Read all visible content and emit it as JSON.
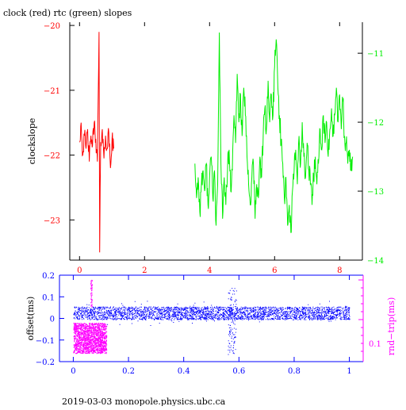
{
  "title": "clock (red) rtc (green) slopes",
  "footer": "2019-03-03  monopole.physics.ubc.ca",
  "colors": {
    "clock": "#ff0000",
    "rtc": "#00ee00",
    "offset": "#0000ff",
    "rndtrip": "#ff00ff",
    "frame": "#000000"
  },
  "chart_data": [
    {
      "type": "line",
      "title": "clock (red) rtc (green) slopes",
      "ylabel": "clockslope",
      "xlim": [
        -0.3,
        8.7
      ],
      "ylim": [
        -23.62,
        -19.95
      ],
      "y2lim": [
        -14.0,
        -10.55
      ],
      "x_ticks": [
        0,
        2,
        4,
        6,
        8
      ],
      "x_tick_labels": [
        "0",
        "2",
        "4",
        "6",
        "8"
      ],
      "y_ticks": [
        -20,
        -21,
        -22,
        -23
      ],
      "y_tick_labels": [
        "−20",
        "−21",
        "−22",
        "−23"
      ],
      "y2_ticks": [
        -11,
        -12,
        -13,
        -14
      ],
      "y2_tick_labels": [
        "−11",
        "−12",
        "−13",
        "−14"
      ],
      "series": [
        {
          "axis": "left",
          "color": "#ff0000",
          "x": [
            0.0,
            0.05,
            0.1,
            0.15,
            0.2,
            0.25,
            0.3,
            0.35,
            0.4,
            0.45,
            0.5,
            0.55,
            0.6,
            0.62,
            0.65,
            0.7,
            0.75,
            0.8,
            0.85,
            0.9,
            0.95,
            1.0,
            1.05
          ],
          "values": [
            -21.8,
            -21.5,
            -22.0,
            -21.7,
            -21.9,
            -21.6,
            -22.1,
            -21.7,
            -21.85,
            -21.5,
            -21.75,
            -22.1,
            -20.1,
            -23.5,
            -21.8,
            -21.6,
            -22.05,
            -21.7,
            -21.9,
            -21.65,
            -22.2,
            -21.75,
            -21.9
          ]
        },
        {
          "axis": "right",
          "color": "#00ee00",
          "x": [
            3.55,
            3.6,
            3.65,
            3.7,
            3.75,
            3.8,
            3.85,
            3.9,
            3.95,
            4.0,
            4.05,
            4.1,
            4.15,
            4.2,
            4.25,
            4.3,
            4.35,
            4.4,
            4.45,
            4.5,
            4.55,
            4.6,
            4.65,
            4.7,
            4.75,
            4.8,
            4.85,
            4.9,
            4.95,
            5.0,
            5.05,
            5.1,
            5.15,
            5.2,
            5.25,
            5.3,
            5.35,
            5.4,
            5.45,
            5.5,
            5.55,
            5.6,
            5.65,
            5.7,
            5.75,
            5.8,
            5.85,
            5.9,
            5.95,
            6.0,
            6.05,
            6.1,
            6.15,
            6.2,
            6.25,
            6.3,
            6.35,
            6.4,
            6.45,
            6.5,
            6.55,
            6.6,
            6.65,
            6.7,
            6.75,
            6.8,
            6.85,
            6.9,
            6.95,
            7.0,
            7.05,
            7.1,
            7.15,
            7.2,
            7.25,
            7.3,
            7.35,
            7.4,
            7.45,
            7.5,
            7.55,
            7.6,
            7.65,
            7.7,
            7.75,
            7.8,
            7.85,
            7.9,
            7.95,
            8.0,
            8.05,
            8.1,
            8.15,
            8.2,
            8.25,
            8.3,
            8.35,
            8.4
          ],
          "values": [
            -12.6,
            -13.1,
            -12.8,
            -13.3,
            -12.9,
            -12.7,
            -13.0,
            -12.6,
            -13.2,
            -12.8,
            -12.5,
            -13.1,
            -12.7,
            -13.5,
            -12.9,
            -10.7,
            -12.6,
            -13.4,
            -12.8,
            -13.2,
            -12.7,
            -12.4,
            -13.0,
            -12.7,
            -11.9,
            -12.3,
            -11.3,
            -12.0,
            -11.6,
            -12.2,
            -11.5,
            -11.9,
            -12.5,
            -12.9,
            -13.2,
            -12.8,
            -12.6,
            -13.4,
            -12.9,
            -13.1,
            -12.5,
            -12.8,
            -12.2,
            -11.8,
            -12.1,
            -11.4,
            -12.0,
            -11.6,
            -11.9,
            -11.2,
            -10.8,
            -11.5,
            -11.9,
            -12.3,
            -12.6,
            -13.1,
            -12.8,
            -13.5,
            -13.2,
            -13.6,
            -13.0,
            -12.7,
            -12.4,
            -12.9,
            -12.2,
            -12.6,
            -12.0,
            -12.5,
            -12.8,
            -12.3,
            -12.7,
            -12.9,
            -13.2,
            -12.8,
            -12.5,
            -12.9,
            -12.6,
            -12.1,
            -12.4,
            -11.9,
            -12.3,
            -12.0,
            -12.5,
            -12.1,
            -11.8,
            -12.2,
            -11.9,
            -11.5,
            -12.0,
            -11.6,
            -12.1,
            -11.7,
            -12.2,
            -12.3,
            -12.6,
            -12.4,
            -12.7,
            -12.5
          ]
        }
      ]
    },
    {
      "type": "scatter",
      "xlabel": "",
      "ylabel": "offset(ms)",
      "y2label": "rnd−trip(ms)",
      "xlim": [
        -0.05,
        1.05
      ],
      "ylim": [
        -0.2,
        0.2
      ],
      "x_ticks": [
        0,
        0.2,
        0.4,
        0.6,
        0.8,
        1
      ],
      "x_tick_labels": [
        "0",
        "0.2",
        "0.4",
        "0.6",
        "0.8",
        "1"
      ],
      "y_ticks": [
        0.2,
        0.1,
        0,
        -0.1,
        -0.2
      ],
      "y_tick_labels": [
        "0.2",
        "0.1",
        "0",
        "−0.1",
        "−0.2"
      ],
      "y2_tick_labels": [
        "0.1"
      ],
      "series": [
        {
          "name": "offset",
          "color": "#0000ff",
          "band_x": [
            0,
            1
          ],
          "band_y": [
            -0.005,
            0.055
          ],
          "excursion_x": 0.575,
          "excursion_y": [
            -0.17,
            0.15
          ]
        },
        {
          "name": "rnd-trip",
          "color": "#ff00ff",
          "band_x": [
            0,
            0.12
          ],
          "band_y": [
            -0.16,
            -0.02
          ],
          "spike_x": 0.065,
          "spike_y": [
            0.05,
            0.18
          ]
        }
      ]
    }
  ]
}
